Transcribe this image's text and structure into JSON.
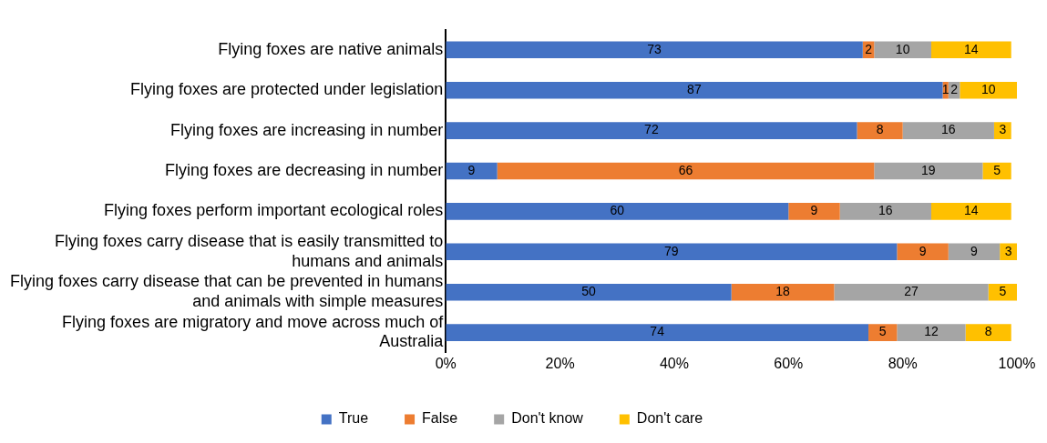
{
  "chart_data": {
    "type": "bar",
    "orientation": "horizontal",
    "stacked": true,
    "categories": [
      "Flying foxes are native animals",
      "Flying foxes are protected under legislation",
      "Flying foxes are increasing in number",
      "Flying foxes are decreasing in number",
      "Flying foxes perform important ecological roles",
      "Flying foxes carry disease that is easily transmitted to humans and animals",
      "Flying foxes carry disease that can be prevented in humans and animals with simple measures",
      "Flying foxes are migratory and move across much of Australia"
    ],
    "series": [
      {
        "name": "True",
        "color": "#4472c4",
        "values": [
          73,
          87,
          72,
          9,
          60,
          79,
          50,
          74
        ]
      },
      {
        "name": "False",
        "color": "#ed7d31",
        "values": [
          2,
          1,
          8,
          66,
          9,
          9,
          18,
          5
        ]
      },
      {
        "name": "Don't know",
        "color": "#a5a5a5",
        "values": [
          10,
          2,
          16,
          19,
          16,
          9,
          27,
          12
        ]
      },
      {
        "name": "Don't care",
        "color": "#ffc000",
        "values": [
          14,
          10,
          3,
          5,
          14,
          3,
          5,
          8
        ]
      }
    ],
    "xlim": [
      0,
      100
    ],
    "xticks": [
      {
        "value": 0,
        "label": "0%"
      },
      {
        "value": 20,
        "label": "20%"
      },
      {
        "value": 40,
        "label": "40%"
      },
      {
        "value": 60,
        "label": "60%"
      },
      {
        "value": 80,
        "label": "80%"
      },
      {
        "value": 100,
        "label": "100%"
      }
    ],
    "data_labels": true,
    "legend": "bottom",
    "grid": false
  }
}
